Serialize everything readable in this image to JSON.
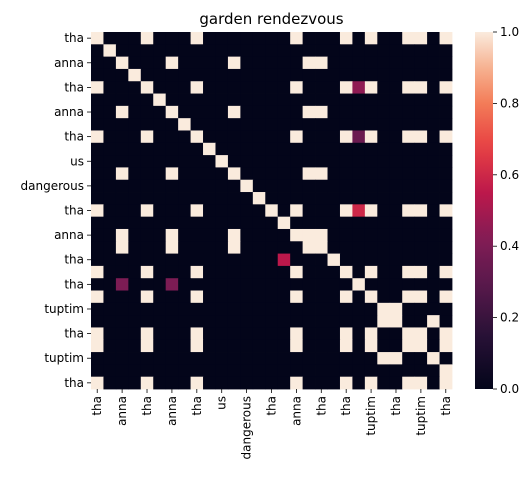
{
  "chart_data": {
    "type": "heatmap",
    "title": "garden rendezvous",
    "row_tick_labels": [
      "tha",
      "anna",
      "tha",
      "anna",
      "tha",
      "us",
      "dangerous",
      "tha",
      "anna",
      "tha",
      "tha",
      "tuptim",
      "tha",
      "tuptim",
      "tha"
    ],
    "col_tick_labels": [
      "tha",
      "anna",
      "tha",
      "anna",
      "tha",
      "us",
      "dangerous",
      "tha",
      "anna",
      "tha",
      "tha",
      "tuptim",
      "tha",
      "tuptim",
      "tha"
    ],
    "n_rows": 29,
    "n_cols": 29,
    "values": [
      [
        1,
        0,
        0,
        0,
        1,
        0,
        0,
        0,
        1,
        0,
        0,
        0,
        0,
        0,
        0,
        0,
        1,
        0,
        0,
        0,
        1,
        0,
        1,
        0,
        0,
        1,
        1,
        0,
        1
      ],
      [
        0,
        1,
        0,
        0,
        0,
        0,
        0,
        0,
        0,
        0,
        0,
        0,
        0,
        0,
        0,
        0,
        0,
        0,
        0,
        0,
        0,
        0,
        0,
        0,
        0,
        0,
        0,
        0,
        0
      ],
      [
        0,
        0,
        1,
        0,
        0,
        0,
        1,
        0,
        0,
        0,
        0,
        1,
        0,
        0,
        0,
        0,
        0,
        1,
        1,
        0,
        0,
        0,
        0,
        0,
        0,
        0,
        0,
        0,
        0
      ],
      [
        0,
        0,
        0,
        1,
        0,
        0,
        0,
        0,
        0,
        0,
        0,
        0,
        0,
        0,
        0,
        0,
        0,
        0,
        0,
        0,
        0,
        0,
        0,
        0,
        0,
        0,
        0,
        0,
        0
      ],
      [
        1,
        0,
        0,
        0,
        1,
        0,
        0,
        0,
        1,
        0,
        0,
        0,
        0,
        0,
        0,
        0,
        1,
        0,
        0,
        0,
        1,
        0.45,
        1,
        0,
        0,
        1,
        1,
        0,
        1
      ],
      [
        0,
        0,
        0,
        0,
        0,
        1,
        0,
        0,
        0,
        0,
        0,
        0,
        0,
        0,
        0,
        0,
        0,
        0,
        0,
        0,
        0,
        0,
        0,
        0,
        0,
        0,
        0,
        0,
        0
      ],
      [
        0,
        0,
        1,
        0,
        0,
        0,
        1,
        0,
        0,
        0,
        0,
        1,
        0,
        0,
        0,
        0,
        0,
        1,
        1,
        0,
        0,
        0,
        0,
        0,
        0,
        0,
        0,
        0,
        0
      ],
      [
        0,
        0,
        0,
        0,
        0,
        0,
        0,
        1,
        0,
        0,
        0,
        0,
        0,
        0,
        0,
        0,
        0,
        0,
        0,
        0,
        0,
        0,
        0,
        0,
        0,
        0,
        0,
        0,
        0
      ],
      [
        1,
        0,
        0,
        0,
        1,
        0,
        0,
        0,
        1,
        0,
        0,
        0,
        0,
        0,
        0,
        0,
        1,
        0,
        0,
        0,
        1,
        0.35,
        1,
        0,
        0,
        1,
        1,
        0,
        1
      ],
      [
        0,
        0,
        0,
        0,
        0,
        0,
        0,
        0,
        0,
        1,
        0,
        0,
        0,
        0,
        0,
        0,
        0,
        0,
        0,
        0,
        0,
        0,
        0,
        0,
        0,
        0,
        0,
        0,
        0
      ],
      [
        0,
        0,
        0,
        0,
        0,
        0,
        0,
        0,
        0,
        0,
        1,
        0,
        0,
        0,
        0,
        0,
        0,
        0,
        0,
        0,
        0,
        0,
        0,
        0,
        0,
        0,
        0,
        0,
        0
      ],
      [
        0,
        0,
        1,
        0,
        0,
        0,
        1,
        0,
        0,
        0,
        0,
        1,
        0,
        0,
        0,
        0,
        0,
        1,
        1,
        0,
        0,
        0,
        0,
        0,
        0,
        0,
        0,
        0,
        0
      ],
      [
        0,
        0,
        0,
        0,
        0,
        0,
        0,
        0,
        0,
        0,
        0,
        0,
        1,
        0,
        0,
        0,
        0,
        0,
        0,
        0,
        0,
        0,
        0,
        0,
        0,
        0,
        0,
        0,
        0
      ],
      [
        0,
        0,
        0,
        0,
        0,
        0,
        0,
        0,
        0,
        0,
        0,
        0,
        0,
        1,
        0,
        0,
        0,
        0,
        0,
        0,
        0,
        0,
        0,
        0,
        0,
        0,
        0,
        0,
        0
      ],
      [
        1,
        0,
        0,
        0,
        1,
        0,
        0,
        0,
        1,
        0,
        0,
        0,
        0,
        0,
        1,
        0,
        1,
        0,
        0,
        0,
        1,
        0.6,
        1,
        0,
        0,
        1,
        1,
        0,
        1
      ],
      [
        0,
        0,
        0,
        0,
        0,
        0,
        0,
        0,
        0,
        0,
        0,
        0,
        0,
        0,
        0,
        1,
        0,
        0,
        0,
        0,
        0,
        0,
        0,
        0,
        0,
        0,
        0,
        0,
        0
      ],
      [
        0,
        0,
        1,
        0,
        0,
        0,
        1,
        0,
        0,
        0,
        0,
        1,
        0,
        0,
        0,
        0,
        1,
        1,
        1,
        0,
        0,
        0,
        0,
        0,
        0,
        0,
        0,
        0,
        0
      ],
      [
        0,
        0,
        1,
        0,
        0,
        0,
        1,
        0,
        0,
        0,
        0,
        1,
        0,
        0,
        0,
        0,
        0,
        1,
        1,
        0,
        0,
        0,
        0,
        0,
        0,
        0,
        0,
        0,
        0
      ],
      [
        0,
        0,
        0,
        0,
        0,
        0,
        0,
        0,
        0,
        0,
        0,
        0,
        0,
        0,
        0,
        0.55,
        0,
        0,
        0,
        1,
        0,
        0,
        0,
        0,
        0,
        0,
        0,
        0,
        0
      ],
      [
        1,
        0,
        0,
        0,
        1,
        0,
        0,
        0,
        1,
        0,
        0,
        0,
        0,
        0,
        0,
        0,
        1,
        0,
        0,
        0,
        1,
        0,
        1,
        0,
        0,
        1,
        1,
        0,
        1
      ],
      [
        0,
        0,
        0.4,
        0,
        0,
        0,
        0.4,
        0,
        0,
        0,
        0,
        0,
        0,
        0,
        0,
        0,
        0,
        0,
        0,
        0,
        0,
        1,
        0,
        0,
        0,
        0,
        0,
        0,
        0
      ],
      [
        1,
        0,
        0,
        0,
        1,
        0,
        0,
        0,
        1,
        0,
        0,
        0,
        0,
        0,
        0,
        0,
        1,
        0,
        0,
        0,
        1,
        0,
        1,
        0,
        0,
        1,
        1,
        0,
        1
      ],
      [
        0,
        0,
        0,
        0,
        0,
        0,
        0,
        0,
        0,
        0,
        0,
        0,
        0,
        0,
        0,
        0,
        0,
        0,
        0,
        0,
        0,
        0,
        0,
        1,
        1,
        0,
        0,
        0,
        0
      ],
      [
        0,
        0,
        0,
        0,
        0,
        0,
        0,
        0,
        0,
        0,
        0,
        0,
        0,
        0,
        0,
        0,
        0,
        0,
        0,
        0,
        0,
        0,
        0,
        1,
        1,
        0,
        0,
        1,
        0
      ],
      [
        1,
        0,
        0,
        0,
        1,
        0,
        0,
        0,
        1,
        0,
        0,
        0,
        0,
        0,
        0,
        0,
        1,
        0,
        0,
        0,
        1,
        0,
        1,
        0,
        0,
        1,
        1,
        0,
        1
      ],
      [
        1,
        0,
        0,
        0,
        1,
        0,
        0,
        0,
        1,
        0,
        0,
        0,
        0,
        0,
        0,
        0,
        1,
        0,
        0,
        0,
        1,
        0,
        1,
        0,
        0,
        1,
        1,
        0,
        1
      ],
      [
        0,
        0,
        0,
        0,
        0,
        0,
        0,
        0,
        0,
        0,
        0,
        0,
        0,
        0,
        0,
        0,
        0,
        0,
        0,
        0,
        0,
        0,
        0,
        1,
        1,
        0,
        0,
        1,
        0
      ],
      [
        0,
        0,
        0,
        0,
        0,
        0,
        0,
        0,
        0,
        0,
        0,
        0,
        0,
        0,
        0,
        0,
        0,
        0,
        0,
        0,
        0,
        0,
        0,
        0,
        0,
        0,
        0,
        0,
        1
      ],
      [
        1,
        0,
        0,
        0,
        1,
        0,
        0,
        0,
        1,
        0,
        0,
        0,
        0,
        0,
        0,
        0,
        1,
        0,
        0,
        0,
        1,
        0,
        1,
        0,
        0,
        1,
        1,
        0,
        1
      ]
    ],
    "colorbar": {
      "min": 0.0,
      "max": 1.0,
      "ticks": [
        "0.0",
        "0.2",
        "0.4",
        "0.6",
        "0.8",
        "1.0"
      ]
    },
    "colormap": "rocket",
    "grid": false
  }
}
